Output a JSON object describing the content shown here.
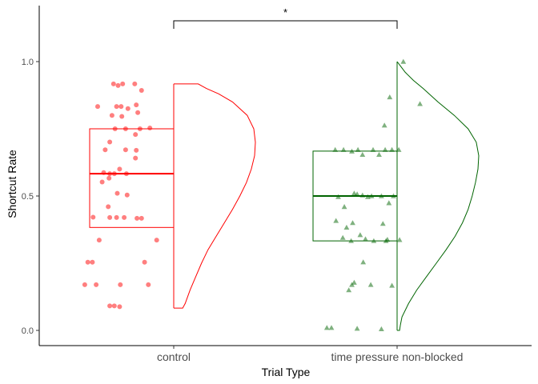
{
  "chart_data": {
    "type": "raincloud",
    "xlabel": "Trial Type",
    "ylabel": "Shortcut Rate",
    "ylim": [
      -0.05,
      1.2
    ],
    "yticks": [
      0.0,
      0.5,
      1.0
    ],
    "ytick_labels": [
      "0.0",
      "0.5",
      "1.0"
    ],
    "grid": false,
    "categories": [
      "control",
      "time pressure non-blocked"
    ],
    "series": [
      {
        "category": "control",
        "color": "#ff0000",
        "marker": "circle",
        "box": {
          "min": 0.083,
          "q1": 0.383,
          "median": 0.583,
          "q3": 0.75,
          "max": 0.917
        },
        "density": [
          [
            0.083,
            0.11
          ],
          [
            0.1,
            0.14
          ],
          [
            0.15,
            0.2
          ],
          [
            0.2,
            0.27
          ],
          [
            0.25,
            0.34
          ],
          [
            0.3,
            0.42
          ],
          [
            0.35,
            0.52
          ],
          [
            0.4,
            0.62
          ],
          [
            0.45,
            0.72
          ],
          [
            0.5,
            0.81
          ],
          [
            0.55,
            0.89
          ],
          [
            0.6,
            0.95
          ],
          [
            0.65,
            0.99
          ],
          [
            0.7,
            1.0
          ],
          [
            0.75,
            0.98
          ],
          [
            0.8,
            0.9
          ],
          [
            0.85,
            0.72
          ],
          [
            0.88,
            0.55
          ],
          [
            0.9,
            0.4
          ],
          [
            0.917,
            0.3
          ]
        ],
        "points": [
          [
            0.917,
            -0.24
          ],
          [
            0.917,
            -0.12
          ],
          [
            0.911,
            -0.18
          ],
          [
            0.917,
            0.04
          ],
          [
            0.893,
            0.13
          ],
          [
            0.839,
            0.06
          ],
          [
            0.833,
            -0.45
          ],
          [
            0.833,
            -0.2
          ],
          [
            0.833,
            -0.14
          ],
          [
            0.825,
            -0.05
          ],
          [
            0.81,
            0.08
          ],
          [
            0.8,
            -0.26
          ],
          [
            0.796,
            -0.13
          ],
          [
            0.75,
            -0.22
          ],
          [
            0.75,
            -0.08
          ],
          [
            0.75,
            0.11
          ],
          [
            0.753,
            0.24
          ],
          [
            0.729,
            0.05
          ],
          [
            0.701,
            -0.29
          ],
          [
            0.672,
            -0.35
          ],
          [
            0.672,
            -0.08
          ],
          [
            0.67,
            0.06
          ],
          [
            0.641,
            0.05
          ],
          [
            0.6,
            -0.16
          ],
          [
            0.587,
            -0.37
          ],
          [
            0.583,
            -0.29
          ],
          [
            0.583,
            -0.23
          ],
          [
            0.583,
            -0.07
          ],
          [
            0.566,
            -0.3
          ],
          [
            0.552,
            -0.39
          ],
          [
            0.51,
            -0.19
          ],
          [
            0.504,
            -0.06
          ],
          [
            0.46,
            -0.31
          ],
          [
            0.421,
            -0.51
          ],
          [
            0.42,
            -0.29
          ],
          [
            0.42,
            -0.2
          ],
          [
            0.42,
            -0.1
          ],
          [
            0.417,
            0.07
          ],
          [
            0.417,
            0.13
          ],
          [
            0.336,
            -0.43
          ],
          [
            0.336,
            0.33
          ],
          [
            0.254,
            -0.58
          ],
          [
            0.254,
            -0.52
          ],
          [
            0.254,
            0.17
          ],
          [
            0.17,
            -0.62
          ],
          [
            0.17,
            -0.47
          ],
          [
            0.17,
            -0.15
          ],
          [
            0.17,
            0.22
          ],
          [
            0.091,
            -0.29
          ],
          [
            0.091,
            -0.23
          ],
          [
            0.088,
            -0.16
          ]
        ]
      },
      {
        "category": "time pressure non-blocked",
        "color": "#006400",
        "marker": "triangle",
        "box": {
          "min": 0.0,
          "q1": 0.333,
          "median": 0.5,
          "q3": 0.667,
          "max": 1.0
        },
        "density": [
          [
            0.0,
            0.03
          ],
          [
            0.02,
            0.04
          ],
          [
            0.05,
            0.06
          ],
          [
            0.1,
            0.14
          ],
          [
            0.15,
            0.24
          ],
          [
            0.2,
            0.36
          ],
          [
            0.25,
            0.48
          ],
          [
            0.3,
            0.6
          ],
          [
            0.35,
            0.71
          ],
          [
            0.4,
            0.8
          ],
          [
            0.45,
            0.87
          ],
          [
            0.5,
            0.92
          ],
          [
            0.55,
            0.96
          ],
          [
            0.6,
            0.99
          ],
          [
            0.65,
            1.0
          ],
          [
            0.7,
            0.97
          ],
          [
            0.75,
            0.87
          ],
          [
            0.8,
            0.7
          ],
          [
            0.85,
            0.5
          ],
          [
            0.9,
            0.32
          ],
          [
            0.93,
            0.2
          ],
          [
            0.96,
            0.1
          ],
          [
            0.98,
            0.05
          ],
          [
            1.0,
            0.0
          ]
        ]
      }
    ],
    "annotations": [
      {
        "text": "*",
        "between": [
          "control",
          "time pressure non-blocked"
        ],
        "y": 1.15
      }
    ]
  }
}
